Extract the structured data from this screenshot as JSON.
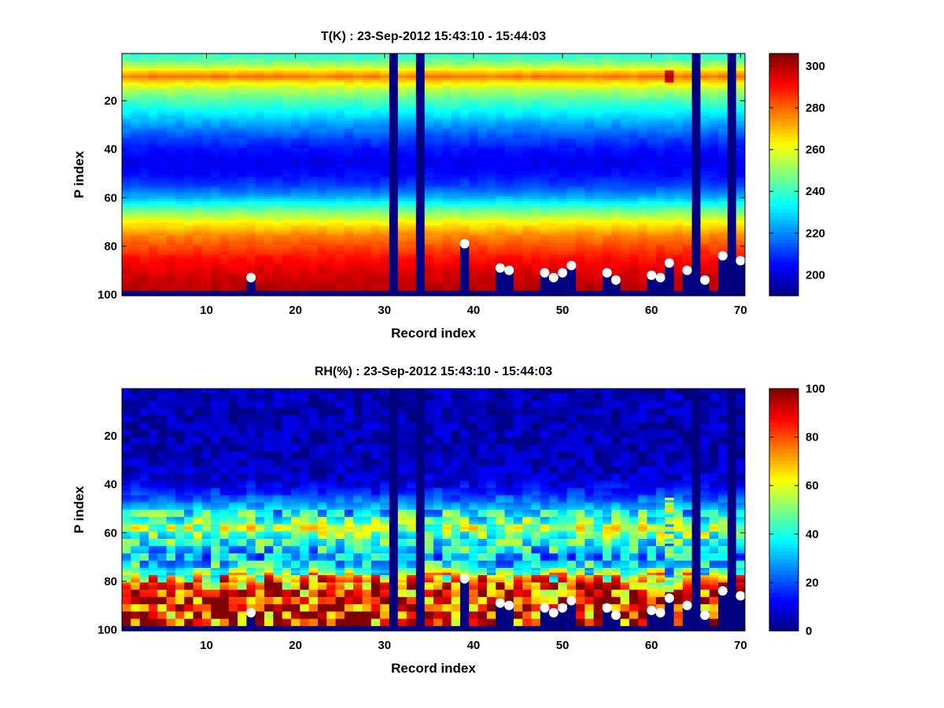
{
  "chart_data": [
    {
      "type": "heatmap",
      "title": "T(K) : 23-Sep-2012 15:43:10 - 15:44:03",
      "xlabel": "Record index",
      "ylabel": "P index",
      "xlim": [
        0.5,
        70.5
      ],
      "ylim": [
        0.5,
        100.5
      ],
      "y_reversed": true,
      "x_ticks": [
        10,
        20,
        30,
        40,
        50,
        60,
        70
      ],
      "y_ticks": [
        20,
        40,
        60,
        80,
        100
      ],
      "colormap": "jet",
      "clim": [
        190,
        306
      ],
      "colorbar_ticks": [
        200,
        220,
        240,
        260,
        280,
        300
      ],
      "missing_columns": [
        31,
        34,
        65,
        69
      ],
      "profile_y": [
        1,
        5,
        8,
        10,
        12,
        15,
        20,
        25,
        30,
        35,
        40,
        45,
        50,
        55,
        60,
        65,
        70,
        75,
        80,
        85,
        90,
        95,
        98
      ],
      "profile_values": [
        238,
        250,
        268,
        278,
        268,
        255,
        242,
        232,
        222,
        213,
        206,
        202,
        205,
        212,
        225,
        245,
        262,
        275,
        283,
        290,
        295,
        298,
        300
      ],
      "surface_markers": {
        "x": [
          15,
          39,
          43,
          44,
          48,
          49,
          50,
          51,
          55,
          56,
          60,
          61,
          62,
          64,
          66,
          68,
          70
        ],
        "y": [
          93,
          79,
          89,
          90,
          91,
          93,
          91,
          88,
          91,
          94,
          92,
          93,
          87,
          90,
          94,
          84,
          86
        ]
      }
    },
    {
      "type": "heatmap",
      "title": "RH(%) : 23-Sep-2012 15:43:10 - 15:44:03",
      "xlabel": "Record index",
      "ylabel": "P index",
      "xlim": [
        0.5,
        70.5
      ],
      "ylim": [
        0.5,
        100.5
      ],
      "y_reversed": true,
      "x_ticks": [
        10,
        20,
        30,
        40,
        50,
        60,
        70
      ],
      "y_ticks": [
        20,
        40,
        60,
        80,
        100
      ],
      "colormap": "jet",
      "clim": [
        0,
        100
      ],
      "colorbar_ticks": [
        0,
        20,
        40,
        60,
        80,
        100
      ],
      "missing_columns": [
        31,
        34,
        65,
        69
      ],
      "profile_y": [
        1,
        30,
        38,
        42,
        46,
        50,
        55,
        58,
        62,
        66,
        70,
        74,
        78,
        82,
        88,
        95,
        98
      ],
      "profile_values": [
        5,
        5,
        8,
        14,
        22,
        32,
        45,
        55,
        45,
        38,
        30,
        38,
        60,
        80,
        88,
        85,
        85
      ],
      "surface_markers": {
        "x": [
          15,
          39,
          43,
          44,
          48,
          49,
          50,
          51,
          55,
          56,
          60,
          61,
          62,
          64,
          66,
          68,
          70
        ],
        "y": [
          93,
          79,
          89,
          90,
          91,
          93,
          91,
          88,
          91,
          94,
          92,
          93,
          87,
          90,
          94,
          84,
          86
        ]
      }
    }
  ]
}
